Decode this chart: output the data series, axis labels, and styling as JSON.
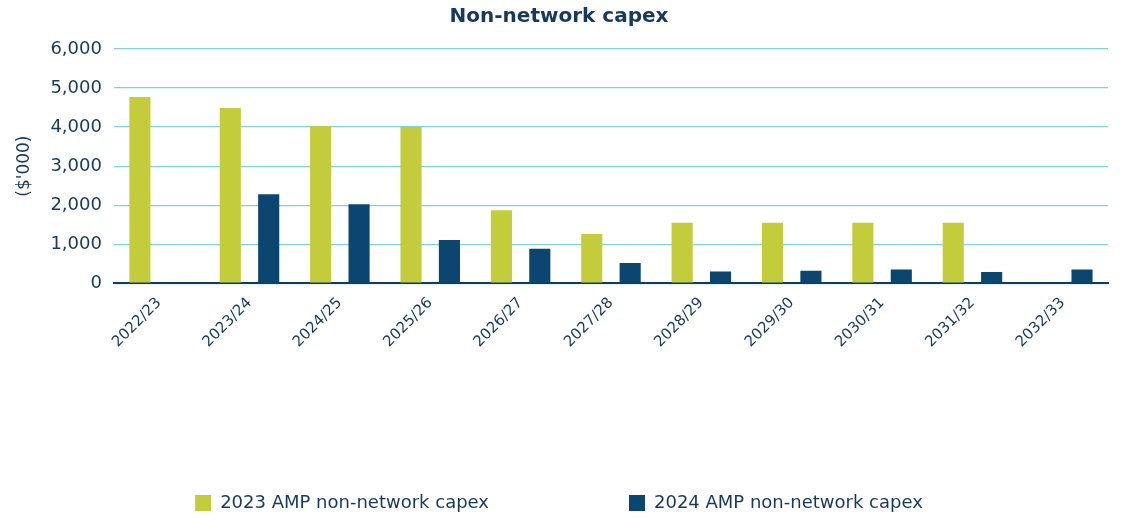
{
  "chart_data": {
    "type": "bar",
    "title": "Non-network capex",
    "ylabel": "($'000)",
    "categories": [
      "2022/23",
      "2023/24",
      "2024/25",
      "2025/26",
      "2026/27",
      "2027/28",
      "2028/29",
      "2029/30",
      "2030/31",
      "2031/32",
      "2032/33"
    ],
    "series": [
      {
        "name": "2023 AMP non-network capex",
        "color": "#c3cc3a",
        "values": [
          4770,
          4490,
          4020,
          4000,
          1870,
          1260,
          1550,
          1550,
          1550,
          1550,
          null
        ]
      },
      {
        "name": "2024 AMP non-network capex",
        "color": "#0b4670",
        "values": [
          null,
          2280,
          2020,
          1110,
          880,
          520,
          300,
          320,
          350,
          290,
          350
        ]
      }
    ],
    "ylim": [
      0,
      6000
    ],
    "yticks": [
      {
        "value": 0,
        "label": "0"
      },
      {
        "value": 1000,
        "label": "1,000"
      },
      {
        "value": 2000,
        "label": "2,000"
      },
      {
        "value": 3000,
        "label": "3,000"
      },
      {
        "value": 4000,
        "label": "4,000"
      },
      {
        "value": 5000,
        "label": "5,000"
      },
      {
        "value": 6000,
        "label": "6,000"
      }
    ],
    "grid": "y",
    "legend": "bottom"
  }
}
